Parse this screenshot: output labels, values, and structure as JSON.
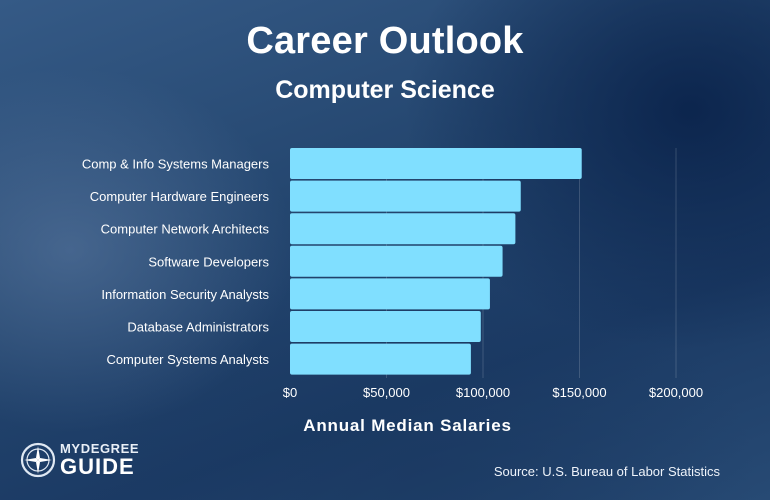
{
  "header": {
    "title": "Career Outlook",
    "subtitle": "Computer Science"
  },
  "chart_data": {
    "type": "bar",
    "orientation": "horizontal",
    "categories": [
      "Comp & Info Systems Managers",
      "Computer Hardware Engineers",
      "Computer Network Architects",
      "Software Developers",
      "Information Security Analysts",
      "Database Administrators",
      "Computer Systems Analysts"
    ],
    "values": [
      151150,
      119560,
      116780,
      110140,
      103590,
      98860,
      93730
    ],
    "xlabel": "Annual Median Salaries",
    "ylabel": "",
    "xlim": [
      0,
      200000
    ],
    "xticks": [
      "$0",
      "$50,000",
      "$100,000",
      "$150,000",
      "$200,000"
    ],
    "grid": true,
    "bar_color": "#80dfff"
  },
  "footer": {
    "source": "Source: U.S. Bureau of Labor Statistics",
    "logo_line1": "MYDEGREE",
    "logo_line2": "GUIDE"
  }
}
